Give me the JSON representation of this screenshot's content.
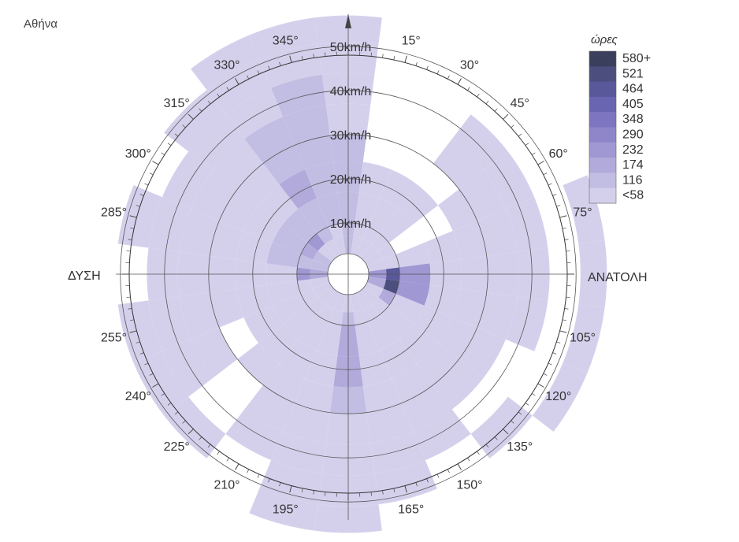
{
  "chart_data": {
    "type": "heatmap",
    "title": "Αθήνα",
    "direction_step_deg": 15,
    "direction_tick_labels": [
      "15°",
      "30°",
      "45°",
      "60°",
      "75°",
      "105°",
      "120°",
      "135°",
      "150°",
      "165°",
      "195°",
      "210°",
      "225°",
      "240°",
      "255°",
      "285°",
      "300°",
      "315°",
      "330°",
      "345°"
    ],
    "direction_tick_degrees": [
      15,
      30,
      45,
      60,
      75,
      105,
      120,
      135,
      150,
      165,
      195,
      210,
      225,
      240,
      255,
      285,
      300,
      315,
      330,
      345
    ],
    "cardinal_labels": {
      "west": "ΔΥΣΗ",
      "east": "ΑΝΑΤΟΛΗ"
    },
    "speed_ring_labels": [
      "10km/h",
      "20km/h",
      "30km/h",
      "40km/h",
      "50km/h"
    ],
    "speed_bins_kmh": [
      [
        3,
        7
      ],
      [
        7,
        10
      ],
      [
        10,
        17
      ],
      [
        17,
        24
      ],
      [
        24,
        30
      ],
      [
        30,
        37
      ],
      [
        37,
        44
      ],
      [
        44,
        51
      ],
      [
        51,
        57
      ]
    ],
    "legend": {
      "title": "ώρες",
      "labels": [
        "580+",
        "521",
        "464",
        "405",
        "348",
        "290",
        "232",
        "174",
        "116",
        "<58"
      ],
      "colors": [
        "#3a3f5c",
        "#4c4f7e",
        "#59589a",
        "#6a65b0",
        "#7d75bf",
        "#8e86c9",
        "#9f98d3",
        "#b1aadb",
        "#c2bde3",
        "#d4d0ec"
      ]
    },
    "sectors": [
      {
        "dir": 0,
        "levels": [
          2,
          2,
          2,
          2,
          2,
          1,
          1,
          1,
          1
        ]
      },
      {
        "dir": 15,
        "levels": [
          1,
          1,
          1,
          1,
          0,
          0,
          0,
          0,
          0
        ]
      },
      {
        "dir": 30,
        "levels": [
          1,
          1,
          1,
          1,
          0,
          0,
          0,
          0,
          0
        ]
      },
      {
        "dir": 45,
        "levels": [
          1,
          1,
          1,
          1,
          0,
          1,
          1,
          0,
          0
        ]
      },
      {
        "dir": 60,
        "levels": [
          1,
          1,
          0,
          0,
          1,
          1,
          1,
          0,
          0
        ]
      },
      {
        "dir": 75,
        "levels": [
          1,
          1,
          1,
          1,
          1,
          1,
          1,
          0,
          1
        ]
      },
      {
        "dir": 90,
        "levels": [
          4,
          8,
          4,
          1,
          1,
          1,
          1,
          0,
          1
        ]
      },
      {
        "dir": 105,
        "levels": [
          3,
          9,
          4,
          1,
          1,
          1,
          1,
          0,
          1
        ]
      },
      {
        "dir": 120,
        "levels": [
          1,
          3,
          1,
          1,
          1,
          1,
          0,
          0,
          1
        ]
      },
      {
        "dir": 135,
        "levels": [
          1,
          1,
          1,
          1,
          1,
          1,
          0,
          1,
          0
        ]
      },
      {
        "dir": 150,
        "levels": [
          1,
          1,
          1,
          1,
          1,
          1,
          1,
          0,
          0
        ]
      },
      {
        "dir": 165,
        "levels": [
          1,
          1,
          1,
          1,
          1,
          1,
          1,
          1,
          0
        ]
      },
      {
        "dir": 180,
        "levels": [
          1,
          2,
          3,
          3,
          2,
          1,
          1,
          1,
          1
        ]
      },
      {
        "dir": 195,
        "levels": [
          1,
          1,
          1,
          1,
          1,
          1,
          1,
          1,
          1
        ]
      },
      {
        "dir": 210,
        "levels": [
          1,
          1,
          1,
          1,
          1,
          1,
          1,
          0,
          0
        ]
      },
      {
        "dir": 225,
        "levels": [
          1,
          1,
          1,
          1,
          1,
          0,
          0,
          1,
          0
        ]
      },
      {
        "dir": 240,
        "levels": [
          1,
          1,
          1,
          1,
          0,
          1,
          1,
          1,
          0
        ]
      },
      {
        "dir": 255,
        "levels": [
          1,
          1,
          1,
          1,
          1,
          1,
          1,
          1,
          0
        ]
      },
      {
        "dir": 270,
        "levels": [
          3,
          4,
          1,
          1,
          1,
          1,
          1,
          0,
          0
        ]
      },
      {
        "dir": 285,
        "levels": [
          2,
          2,
          2,
          1,
          1,
          1,
          1,
          1,
          0
        ]
      },
      {
        "dir": 300,
        "levels": [
          2,
          3,
          2,
          1,
          1,
          1,
          1,
          0,
          0
        ]
      },
      {
        "dir": 315,
        "levels": [
          1,
          4,
          2,
          1,
          1,
          1,
          1,
          1,
          0
        ]
      },
      {
        "dir": 330,
        "levels": [
          1,
          2,
          2,
          3,
          2,
          2,
          1,
          1,
          1
        ]
      },
      {
        "dir": 345,
        "levels": [
          1,
          1,
          2,
          2,
          2,
          2,
          2,
          1,
          1
        ]
      }
    ]
  }
}
